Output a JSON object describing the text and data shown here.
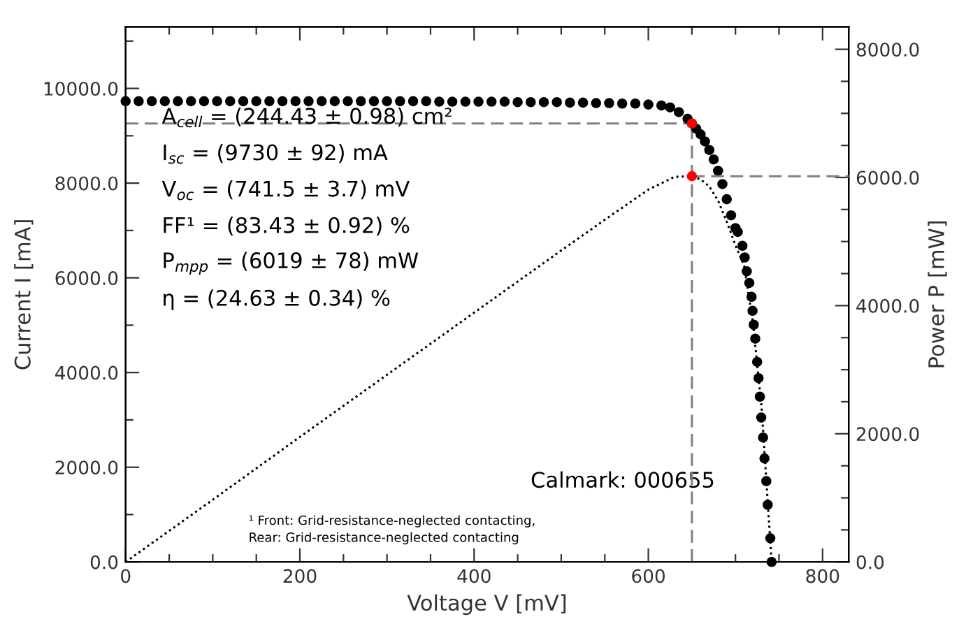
{
  "chart_data": {
    "type": "line",
    "xlabel": "Voltage V [mV]",
    "ylabel": "Current I [mA]",
    "y2label": "Power P [mW]",
    "xlim": [
      0,
      830
    ],
    "ylim": [
      0,
      11300
    ],
    "y2lim": [
      0,
      8350
    ],
    "xticks": [
      0,
      {
        "value": 50,
        "label": null
      },
      200,
      {
        "value": 100,
        "label": null
      },
      {
        "value": 150,
        "label": null
      },
      {
        "value": 250,
        "label": null
      },
      {
        "value": 300,
        "label": null
      },
      {
        "value": 350,
        "label": null
      },
      400,
      {
        "value": 450,
        "label": null
      },
      {
        "value": 500,
        "label": null
      },
      {
        "value": 550,
        "label": null
      },
      600,
      {
        "value": 650,
        "label": null
      },
      {
        "value": 700,
        "label": null
      },
      {
        "value": 750,
        "label": null
      },
      800
    ],
    "yticks": [
      {
        "value": 0,
        "label": "0.0"
      },
      {
        "value": 1000,
        "label": null
      },
      {
        "value": 2000,
        "label": "2000.0"
      },
      {
        "value": 3000,
        "label": null
      },
      {
        "value": 4000,
        "label": "4000.0"
      },
      {
        "value": 5000,
        "label": null
      },
      {
        "value": 6000,
        "label": "6000.0"
      },
      {
        "value": 7000,
        "label": null
      },
      {
        "value": 8000,
        "label": "8000.0"
      },
      {
        "value": 9000,
        "label": null
      },
      {
        "value": 10000,
        "label": "10000.0"
      },
      {
        "value": 11000,
        "label": null
      }
    ],
    "y2ticks": [
      {
        "value": 0,
        "label": "0.0"
      },
      {
        "value": 500,
        "label": null
      },
      {
        "value": 1000,
        "label": null
      },
      {
        "value": 1500,
        "label": null
      },
      {
        "value": 2000,
        "label": "2000.0"
      },
      {
        "value": 2500,
        "label": null
      },
      {
        "value": 3000,
        "label": null
      },
      {
        "value": 3500,
        "label": null
      },
      {
        "value": 4000,
        "label": "4000.0"
      },
      {
        "value": 4500,
        "label": null
      },
      {
        "value": 5000,
        "label": null
      },
      {
        "value": 5500,
        "label": null
      },
      {
        "value": 6000,
        "label": "6000.0"
      },
      {
        "value": 6500,
        "label": null
      },
      {
        "value": 7000,
        "label": null
      },
      {
        "value": 7500,
        "label": null
      },
      {
        "value": 8000,
        "label": "8000.0"
      }
    ],
    "grid": false,
    "legend": false,
    "series": [
      {
        "color": "#808080",
        "line_style": "dashed",
        "x": [
          0,
          650
        ],
        "values": [
          9260,
          9260
        ]
      },
      {
        "color": "#808080",
        "line_style": "dashed",
        "x": [
          650,
          650
        ],
        "values": [
          0,
          9260
        ]
      },
      {
        "axis": "y2",
        "color": "#808080",
        "line_style": "dashed",
        "x": [
          650,
          830
        ],
        "values": [
          6020,
          6020
        ]
      },
      {
        "axis": "y2",
        "color": "#000000",
        "line_style": "dotted",
        "x": [
          0,
          100,
          200,
          300,
          400,
          500,
          550,
          600,
          630,
          650,
          660,
          670,
          680,
          690,
          700,
          710,
          720,
          730,
          741.5
        ],
        "values": [
          0,
          970,
          1950,
          2920,
          3890,
          4860,
          5340,
          5810,
          6010,
          6020,
          5970,
          5860,
          5640,
          5310,
          4940,
          4620,
          3740,
          2410,
          0
        ]
      },
      {
        "type": "scatter",
        "color": "#000000",
        "marker": "circle",
        "x": [
          0,
          15,
          30,
          45,
          60,
          75,
          90,
          105,
          120,
          135,
          150,
          165,
          180,
          195,
          210,
          225,
          240,
          255,
          270,
          285,
          300,
          315,
          330,
          345,
          360,
          375,
          390,
          405,
          420,
          435,
          450,
          465,
          480,
          495,
          510,
          525,
          540,
          555,
          570,
          585,
          600,
          615,
          625,
          635,
          645,
          650,
          655,
          660,
          665,
          670,
          675,
          680,
          685,
          690,
          695,
          700,
          702.7,
          708,
          710.6,
          713,
          715.9,
          718.5,
          719.6,
          721,
          722.7,
          724.9,
          726.5,
          728,
          729.6,
          731.7,
          733.3,
          735.4,
          737,
          740,
          741.5
        ],
        "values": [
          9730,
          9730,
          9730,
          9730,
          9730,
          9730,
          9730,
          9730,
          9730,
          9730,
          9730,
          9730,
          9730,
          9730,
          9730,
          9730,
          9730,
          9730,
          9730,
          9730,
          9730,
          9730,
          9730,
          9730,
          9720,
          9720,
          9720,
          9720,
          9720,
          9720,
          9710,
          9710,
          9710,
          9710,
          9700,
          9700,
          9690,
          9690,
          9680,
          9680,
          9660,
          9640,
          9600,
          9500,
          9360,
          9260,
          9150,
          9030,
          8880,
          8700,
          8500,
          8260,
          7980,
          7660,
          7320,
          7050,
          6970,
          6676,
          6430,
          6137,
          5892,
          5598,
          5304,
          5010,
          4715,
          4225,
          3882,
          3490,
          3049,
          2627,
          2186,
          1706,
          1206,
          500,
          0
        ]
      },
      {
        "type": "scatter",
        "color": "#ff0000",
        "marker": "circle",
        "x": [
          650
        ],
        "values": [
          9260
        ]
      },
      {
        "type": "scatter",
        "axis": "y2",
        "color": "#ff0000",
        "marker": "circle",
        "x": [
          650
        ],
        "values": [
          6020
        ]
      }
    ],
    "annotations": [
      "A$_{cell}$ = (244.43 ± 0.98) cm²",
      "I$_{sc}$ = (9730 ± 92) mA",
      "V$_{oc}$ = (741.5 ± 3.7) mV",
      "FF¹ = (83.43 ± 0.92) %",
      "P$_{mpp}$ = (6019 ± 78) mW",
      "η = (24.63 ± 0.34) %",
      "Calmark: 000655",
      "¹ Front: Grid-resistance-neglected contacting,\nRear: Grid-resistance-neglected contacting"
    ]
  }
}
